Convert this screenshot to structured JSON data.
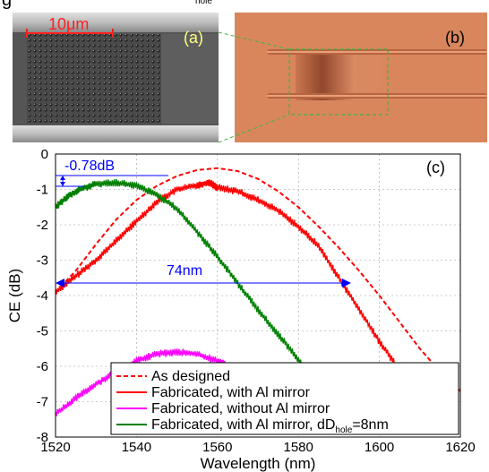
{
  "caption_fragment": "g",
  "caption_subscript": "hole",
  "panel_a": {
    "label": "(a)",
    "scale_bar_text": "10μm"
  },
  "panel_b": {
    "label": "(b)"
  },
  "chart_data": {
    "type": "line",
    "panel_label": "(c)",
    "xlabel": "Wavelength (nm)",
    "ylabel": "CE (dB)",
    "xlim": [
      1520,
      1620
    ],
    "ylim": [
      -8,
      0
    ],
    "xticks": [
      1520,
      1540,
      1560,
      1580,
      1600,
      1620
    ],
    "yticks": [
      0,
      -1,
      -2,
      -3,
      -4,
      -5,
      -6,
      -7,
      -8
    ],
    "grid": true,
    "legend_position": "bottom-center",
    "annotations": [
      {
        "text": "-0.78dB",
        "color": "#0000ff"
      },
      {
        "text": "74nm",
        "color": "#0000ff"
      }
    ],
    "series": [
      {
        "name": "As designed",
        "style": "dashed",
        "color": "#ff0000",
        "x": [
          1520,
          1525,
          1530,
          1535,
          1540,
          1545,
          1550,
          1555,
          1560,
          1565,
          1570,
          1575,
          1580,
          1585,
          1590,
          1595,
          1600,
          1605,
          1610,
          1615,
          1620
        ],
        "y": [
          -3.9,
          -3.3,
          -2.55,
          -1.85,
          -1.3,
          -0.9,
          -0.62,
          -0.45,
          -0.4,
          -0.48,
          -0.7,
          -1.05,
          -1.5,
          -2.05,
          -2.65,
          -3.3,
          -4.0,
          -4.75,
          -5.5,
          -6.15,
          -6.7
        ]
      },
      {
        "name": "Fabricated, with Al mirror",
        "style": "solid",
        "color": "#ff0000",
        "x": [
          1520,
          1525,
          1530,
          1535,
          1540,
          1545,
          1550,
          1555,
          1558,
          1560,
          1565,
          1570,
          1575,
          1580,
          1585,
          1590,
          1595,
          1600,
          1605,
          1610,
          1615
        ],
        "y": [
          -3.9,
          -3.45,
          -3.0,
          -2.45,
          -1.9,
          -1.35,
          -1.0,
          -0.88,
          -0.8,
          -0.95,
          -1.05,
          -1.3,
          -1.6,
          -2.05,
          -2.6,
          -3.5,
          -4.4,
          -5.3,
          -6.1,
          -6.9,
          -7.7
        ]
      },
      {
        "name": "Fabricated, without Al mirror",
        "style": "solid",
        "color": "#ff00ff",
        "x": [
          1520,
          1525,
          1530,
          1535,
          1540,
          1545,
          1550,
          1555,
          1560,
          1562
        ],
        "y": [
          -7.35,
          -6.9,
          -6.5,
          -6.15,
          -5.85,
          -5.65,
          -5.6,
          -5.65,
          -5.85,
          -5.95
        ]
      },
      {
        "name": "Fabricated, with Al mirror, dD",
        "name_subscript": "hole",
        "name_suffix": "=8nm",
        "style": "solid",
        "color": "#008000",
        "x": [
          1520,
          1523,
          1526,
          1530,
          1535,
          1540,
          1545,
          1550,
          1555,
          1560,
          1565,
          1570,
          1575,
          1580,
          1585,
          1588
        ],
        "y": [
          -1.5,
          -1.2,
          -1.0,
          -0.85,
          -0.8,
          -0.9,
          -1.15,
          -1.55,
          -2.2,
          -2.9,
          -3.65,
          -4.4,
          -5.1,
          -5.8,
          -6.5,
          -7.0
        ]
      }
    ]
  }
}
